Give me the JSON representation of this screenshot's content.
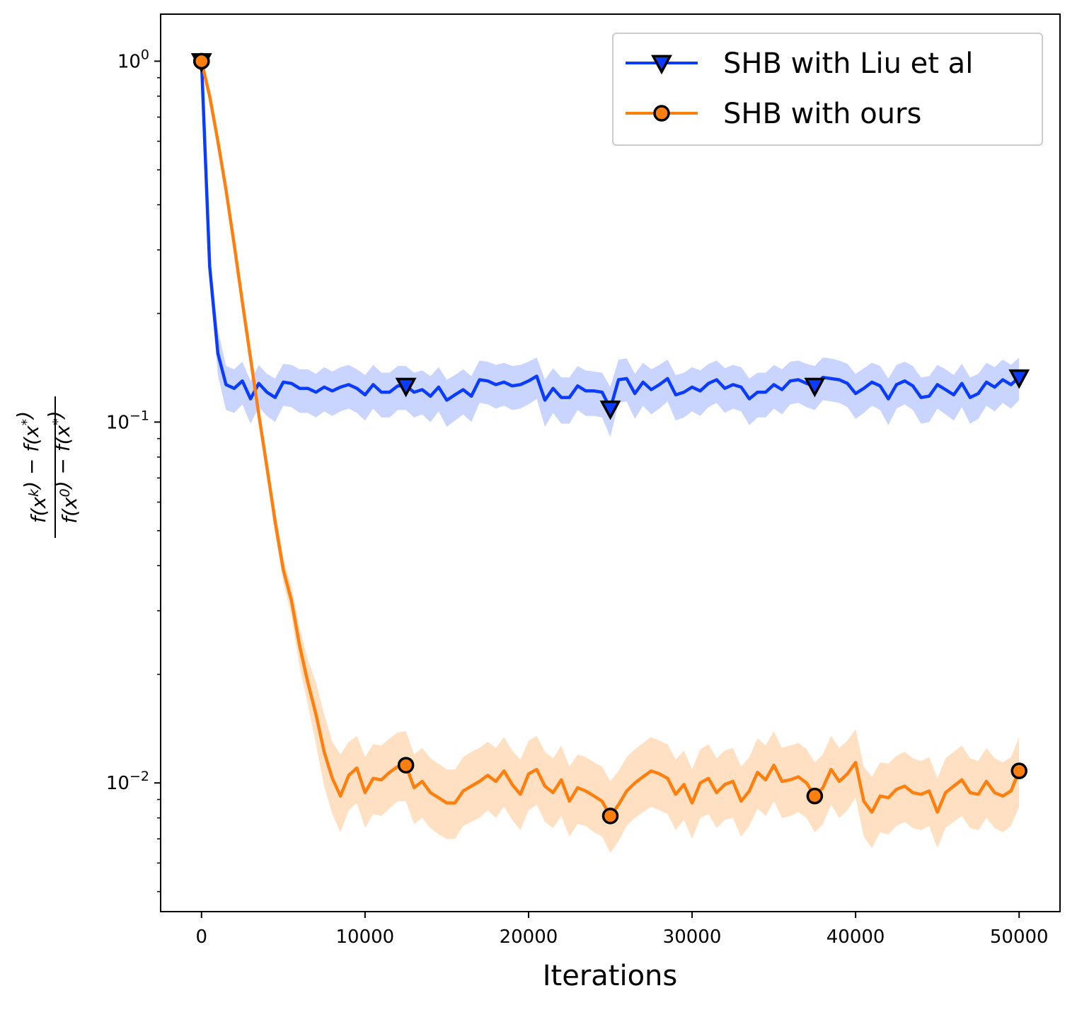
{
  "chart_data": {
    "type": "line",
    "xlabel": "Iterations",
    "ylabel": {
      "numerator": "f(x^k) − f(x^*)",
      "denominator": "f(x^0) − f(x^*)"
    },
    "x_scale": "linear",
    "y_scale": "log",
    "xlim": [
      -2500,
      52500
    ],
    "ylim": [
      0.0044,
      1.35
    ],
    "x_ticks": [
      0,
      10000,
      20000,
      30000,
      40000,
      50000
    ],
    "x_tick_labels": [
      "0",
      "10000",
      "20000",
      "30000",
      "40000",
      "50000"
    ],
    "y_ticks": [
      1,
      0.1,
      0.01
    ],
    "y_tick_labels": [
      {
        "base": "10",
        "exp": "0"
      },
      {
        "base": "10",
        "exp": "−1"
      },
      {
        "base": "10",
        "exp": "−2"
      }
    ],
    "grid": false,
    "legend_position": "top-right",
    "series": [
      {
        "name": "SHB with Liu et al",
        "color": "#0a3cff",
        "band_color": "#c9d4ff",
        "marker": "triangle-down",
        "x": [
          0,
          500,
          1000,
          1500,
          2000,
          2500,
          3000,
          3500,
          4000,
          4500,
          5000,
          5500,
          6000,
          6500,
          7000,
          7500,
          8000,
          8500,
          9000,
          9500,
          10000,
          10500,
          11000,
          11500,
          12000,
          12500,
          13000,
          13500,
          14000,
          14500,
          15000,
          15500,
          16000,
          16500,
          17000,
          17500,
          18000,
          18500,
          19000,
          19500,
          20000,
          20500,
          21000,
          21500,
          22000,
          22500,
          23000,
          23500,
          24000,
          24500,
          25000,
          25500,
          26000,
          26500,
          27000,
          27500,
          28000,
          28500,
          29000,
          29500,
          30000,
          30500,
          31000,
          31500,
          32000,
          32500,
          33000,
          33500,
          34000,
          34500,
          35000,
          35500,
          36000,
          36500,
          37000,
          37500,
          38000,
          38500,
          39000,
          39500,
          40000,
          40500,
          41000,
          41500,
          42000,
          42500,
          43000,
          43500,
          44000,
          44500,
          45000,
          45500,
          46000,
          46500,
          47000,
          47500,
          48000,
          48500,
          49000,
          49500,
          50000
        ],
        "y": [
          1.0,
          0.27,
          0.155,
          0.127,
          0.124,
          0.13,
          0.116,
          0.128,
          0.121,
          0.117,
          0.129,
          0.128,
          0.124,
          0.124,
          0.121,
          0.125,
          0.122,
          0.125,
          0.127,
          0.124,
          0.119,
          0.127,
          0.121,
          0.121,
          0.126,
          0.126,
          0.121,
          0.123,
          0.118,
          0.125,
          0.115,
          0.119,
          0.123,
          0.118,
          0.131,
          0.13,
          0.127,
          0.129,
          0.126,
          0.127,
          0.13,
          0.134,
          0.115,
          0.124,
          0.117,
          0.117,
          0.126,
          0.122,
          0.122,
          0.121,
          0.109,
          0.131,
          0.132,
          0.12,
          0.129,
          0.123,
          0.127,
          0.132,
          0.119,
          0.121,
          0.125,
          0.122,
          0.128,
          0.131,
          0.124,
          0.127,
          0.125,
          0.116,
          0.121,
          0.121,
          0.127,
          0.123,
          0.13,
          0.131,
          0.128,
          0.126,
          0.133,
          0.132,
          0.131,
          0.128,
          0.12,
          0.124,
          0.129,
          0.126,
          0.116,
          0.127,
          0.13,
          0.126,
          0.117,
          0.118,
          0.127,
          0.123,
          0.119,
          0.128,
          0.117,
          0.12,
          0.129,
          0.125,
          0.131,
          0.127,
          0.133
        ],
        "upper": [
          1.0,
          0.29,
          0.18,
          0.143,
          0.14,
          0.147,
          0.13,
          0.144,
          0.136,
          0.132,
          0.145,
          0.144,
          0.14,
          0.14,
          0.136,
          0.142,
          0.138,
          0.142,
          0.144,
          0.14,
          0.135,
          0.144,
          0.137,
          0.137,
          0.143,
          0.143,
          0.137,
          0.139,
          0.134,
          0.142,
          0.131,
          0.135,
          0.14,
          0.134,
          0.148,
          0.147,
          0.144,
          0.146,
          0.143,
          0.144,
          0.147,
          0.151,
          0.131,
          0.141,
          0.133,
          0.133,
          0.143,
          0.139,
          0.138,
          0.137,
          0.125,
          0.149,
          0.15,
          0.136,
          0.146,
          0.14,
          0.144,
          0.149,
          0.135,
          0.137,
          0.142,
          0.139,
          0.145,
          0.148,
          0.141,
          0.144,
          0.142,
          0.132,
          0.137,
          0.137,
          0.144,
          0.14,
          0.147,
          0.148,
          0.145,
          0.143,
          0.151,
          0.15,
          0.148,
          0.145,
          0.136,
          0.141,
          0.146,
          0.143,
          0.132,
          0.144,
          0.147,
          0.143,
          0.133,
          0.134,
          0.144,
          0.14,
          0.135,
          0.145,
          0.133,
          0.136,
          0.146,
          0.142,
          0.149,
          0.144,
          0.151
        ],
        "lower": [
          1.0,
          0.25,
          0.135,
          0.108,
          0.106,
          0.112,
          0.099,
          0.11,
          0.104,
          0.1,
          0.111,
          0.11,
          0.106,
          0.106,
          0.103,
          0.107,
          0.104,
          0.107,
          0.109,
          0.106,
          0.101,
          0.109,
          0.103,
          0.103,
          0.108,
          0.108,
          0.103,
          0.105,
          0.1,
          0.107,
          0.097,
          0.101,
          0.105,
          0.1,
          0.113,
          0.112,
          0.109,
          0.111,
          0.108,
          0.109,
          0.112,
          0.116,
          0.097,
          0.106,
          0.099,
          0.099,
          0.108,
          0.104,
          0.104,
          0.103,
          0.091,
          0.113,
          0.114,
          0.102,
          0.111,
          0.105,
          0.109,
          0.114,
          0.101,
          0.103,
          0.107,
          0.104,
          0.11,
          0.113,
          0.106,
          0.109,
          0.107,
          0.098,
          0.103,
          0.103,
          0.109,
          0.105,
          0.112,
          0.113,
          0.11,
          0.108,
          0.115,
          0.114,
          0.113,
          0.11,
          0.102,
          0.106,
          0.111,
          0.108,
          0.098,
          0.109,
          0.112,
          0.108,
          0.099,
          0.1,
          0.109,
          0.105,
          0.101,
          0.11,
          0.099,
          0.102,
          0.111,
          0.107,
          0.113,
          0.109,
          0.115
        ],
        "marker_x": [
          0,
          12500,
          25000,
          37500,
          50000
        ],
        "marker_y": [
          1.0,
          0.126,
          0.109,
          0.126,
          0.133
        ]
      },
      {
        "name": "SHB with ours",
        "color": "#ff7f0e",
        "band_color": "#ffe0c2",
        "marker": "circle",
        "x": [
          0,
          500,
          1000,
          1500,
          2000,
          2500,
          3000,
          3500,
          4000,
          4500,
          5000,
          5500,
          6000,
          6500,
          7000,
          7500,
          8000,
          8500,
          9000,
          9500,
          10000,
          10500,
          11000,
          11500,
          12000,
          12500,
          13000,
          13500,
          14000,
          14500,
          15000,
          15500,
          16000,
          16500,
          17000,
          17500,
          18000,
          18500,
          19000,
          19500,
          20000,
          20500,
          21000,
          21500,
          22000,
          22500,
          23000,
          23500,
          24000,
          24500,
          25000,
          25500,
          26000,
          26500,
          27000,
          27500,
          28000,
          28500,
          29000,
          29500,
          30000,
          30500,
          31000,
          31500,
          32000,
          32500,
          33000,
          33500,
          34000,
          34500,
          35000,
          35500,
          36000,
          36500,
          37000,
          37500,
          38000,
          38500,
          39000,
          39500,
          40000,
          40500,
          41000,
          41500,
          42000,
          42500,
          43000,
          43500,
          44000,
          44500,
          45000,
          45500,
          46000,
          46500,
          47000,
          47500,
          48000,
          48500,
          49000,
          49500,
          50000
        ],
        "y": [
          1.0,
          0.8,
          0.6,
          0.44,
          0.31,
          0.215,
          0.15,
          0.105,
          0.075,
          0.053,
          0.039,
          0.032,
          0.024,
          0.019,
          0.0155,
          0.0122,
          0.0103,
          0.0092,
          0.0105,
          0.011,
          0.0094,
          0.0103,
          0.0102,
          0.0107,
          0.0111,
          0.0112,
          0.0097,
          0.0101,
          0.0094,
          0.0091,
          0.0088,
          0.0088,
          0.0095,
          0.0098,
          0.0101,
          0.0105,
          0.0101,
          0.0108,
          0.0099,
          0.0093,
          0.0106,
          0.0109,
          0.0098,
          0.0094,
          0.0102,
          0.0089,
          0.0097,
          0.0095,
          0.0092,
          0.0089,
          0.0081,
          0.0087,
          0.0095,
          0.01,
          0.0104,
          0.0108,
          0.0106,
          0.0103,
          0.0093,
          0.0099,
          0.0088,
          0.01,
          0.0103,
          0.0094,
          0.0099,
          0.0101,
          0.0089,
          0.0095,
          0.0107,
          0.0102,
          0.0112,
          0.0101,
          0.0102,
          0.0104,
          0.01,
          0.0092,
          0.0097,
          0.0109,
          0.0101,
          0.0106,
          0.0114,
          0.0089,
          0.0083,
          0.0092,
          0.0091,
          0.0096,
          0.0098,
          0.0094,
          0.0093,
          0.0095,
          0.0083,
          0.0094,
          0.0098,
          0.0102,
          0.0094,
          0.0093,
          0.0101,
          0.0094,
          0.0092,
          0.0095,
          0.0108
        ],
        "upper": [
          1.0,
          0.8,
          0.6,
          0.44,
          0.31,
          0.215,
          0.15,
          0.11,
          0.08,
          0.057,
          0.042,
          0.035,
          0.027,
          0.022,
          0.019,
          0.0155,
          0.013,
          0.012,
          0.013,
          0.0135,
          0.0118,
          0.0128,
          0.0127,
          0.0133,
          0.0138,
          0.0139,
          0.012,
          0.0125,
          0.0117,
          0.0113,
          0.0109,
          0.0109,
          0.0118,
          0.0122,
          0.0125,
          0.013,
          0.0125,
          0.0134,
          0.0123,
          0.0116,
          0.0131,
          0.0135,
          0.0122,
          0.0117,
          0.0127,
          0.0111,
          0.012,
          0.0118,
          0.0114,
          0.0111,
          0.0101,
          0.0108,
          0.0118,
          0.0124,
          0.0129,
          0.0134,
          0.0131,
          0.0128,
          0.0116,
          0.0123,
          0.0109,
          0.0124,
          0.0128,
          0.0117,
          0.0123,
          0.0125,
          0.0111,
          0.0118,
          0.0133,
          0.0127,
          0.0139,
          0.0125,
          0.0127,
          0.0129,
          0.0124,
          0.0114,
          0.012,
          0.0135,
          0.0125,
          0.0131,
          0.0141,
          0.0111,
          0.0104,
          0.0114,
          0.0113,
          0.0119,
          0.0122,
          0.0117,
          0.0115,
          0.0118,
          0.0103,
          0.0117,
          0.0122,
          0.0127,
          0.0117,
          0.0115,
          0.0125,
          0.0117,
          0.0114,
          0.0118,
          0.0134
        ],
        "lower": [
          1.0,
          0.8,
          0.6,
          0.44,
          0.31,
          0.215,
          0.15,
          0.1,
          0.07,
          0.049,
          0.036,
          0.029,
          0.021,
          0.0165,
          0.0128,
          0.0098,
          0.0082,
          0.0073,
          0.0084,
          0.0088,
          0.0075,
          0.0082,
          0.0081,
          0.0085,
          0.0089,
          0.0089,
          0.0077,
          0.008,
          0.0075,
          0.0072,
          0.007,
          0.007,
          0.0076,
          0.0078,
          0.008,
          0.0084,
          0.008,
          0.0086,
          0.0079,
          0.0074,
          0.0084,
          0.0087,
          0.0078,
          0.0075,
          0.0081,
          0.0071,
          0.0077,
          0.0076,
          0.0073,
          0.0071,
          0.0064,
          0.0069,
          0.0076,
          0.008,
          0.0083,
          0.0086,
          0.0084,
          0.0082,
          0.0074,
          0.0079,
          0.007,
          0.008,
          0.0082,
          0.0075,
          0.0079,
          0.008,
          0.0071,
          0.0076,
          0.0085,
          0.0081,
          0.0089,
          0.008,
          0.0081,
          0.0083,
          0.008,
          0.0073,
          0.0077,
          0.0087,
          0.008,
          0.0084,
          0.0091,
          0.0071,
          0.0066,
          0.0073,
          0.0072,
          0.0076,
          0.0078,
          0.0075,
          0.0074,
          0.0076,
          0.0066,
          0.0075,
          0.0078,
          0.0081,
          0.0075,
          0.0074,
          0.008,
          0.0075,
          0.0073,
          0.0076,
          0.0086
        ],
        "marker_x": [
          0,
          12500,
          25000,
          37500,
          50000
        ],
        "marker_y": [
          1.0,
          0.0112,
          0.0081,
          0.0092,
          0.0108
        ]
      }
    ]
  }
}
